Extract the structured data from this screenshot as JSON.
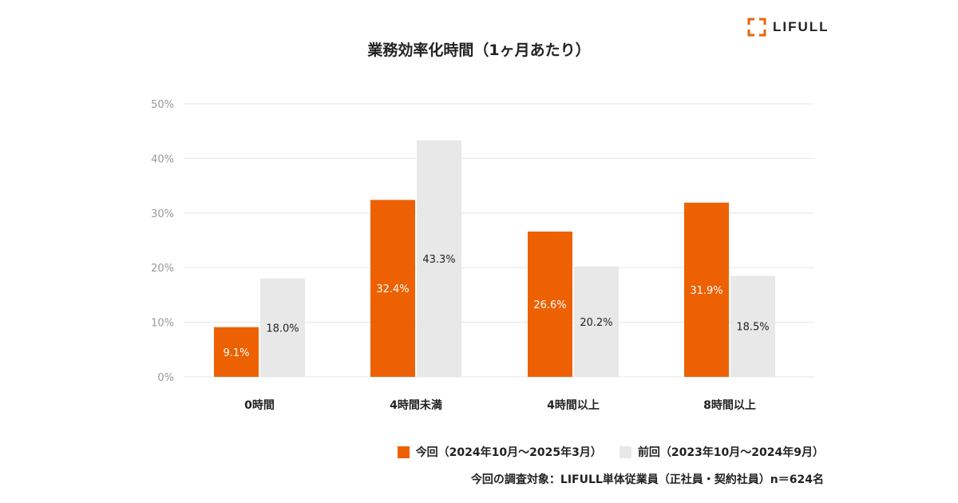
{
  "brand": {
    "logo_text": "LIFULL",
    "logo_color": "#e8640a"
  },
  "colors": {
    "current": "#ed6103",
    "previous": "#e8e8e8",
    "grid": "#e5e5e5",
    "tick_text": "#999999"
  },
  "chart_data": {
    "type": "bar",
    "title": "業務効率化時間（1ヶ月あたり）",
    "categories": [
      "0時間",
      "4時間未満",
      "4時間以上",
      "8時間以上"
    ],
    "series": [
      {
        "name": "今回（2024年10月〜2025年3月）",
        "values": [
          9.1,
          32.4,
          26.6,
          31.9
        ],
        "labels": [
          "9.1%",
          "32.4%",
          "26.6%",
          "31.9%"
        ]
      },
      {
        "name": "前回（2023年10月〜2024年9月）",
        "values": [
          18.0,
          43.3,
          20.2,
          18.5
        ],
        "labels": [
          "18.0%",
          "43.3%",
          "20.2%",
          "18.5%"
        ]
      }
    ],
    "ylim": [
      0,
      50
    ],
    "yticks": [
      0,
      10,
      20,
      30,
      40,
      50
    ],
    "ytick_labels": [
      "0%",
      "10%",
      "20%",
      "30%",
      "40%",
      "50%"
    ],
    "grid": true,
    "legend_position": "bottom-right"
  },
  "footnote": "今回の調査対象：LIFULL単体従業員（正社員・契約社員）n＝624名"
}
